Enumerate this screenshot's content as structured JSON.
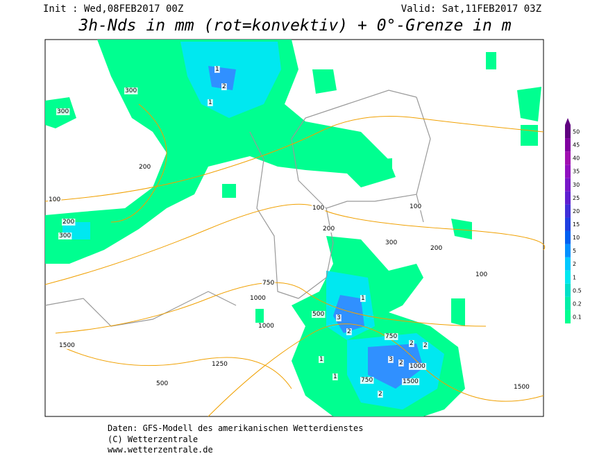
{
  "header": {
    "init": "Init : Wed,08FEB2017 00Z",
    "valid": "Valid: Sat,11FEB2017 03Z",
    "title": "3h-Nds in mm (rot=konvektiv) + 0°-Grenze in m"
  },
  "legend": {
    "labels": [
      0.1,
      0.2,
      0.5,
      1,
      2,
      5,
      10,
      15,
      20,
      25,
      30,
      35,
      40,
      45,
      50
    ],
    "colors": [
      "#00ff90",
      "#00eea8",
      "#00e0c8",
      "#00e8f0",
      "#00c8ff",
      "#0090ff",
      "#0060f0",
      "#2040e0",
      "#4030d8",
      "#6020d0",
      "#7818c8",
      "#9010c0",
      "#a010b0",
      "#8000a0",
      "#600080"
    ]
  },
  "map_labels": [
    "300",
    "300",
    "200",
    "100",
    "200",
    "300",
    "100",
    "200",
    "300",
    "750",
    "1000",
    "500",
    "1000",
    "750",
    "1500",
    "1250",
    "1500",
    "1000",
    "750",
    "500",
    "200",
    "100",
    "1500",
    "100",
    "1",
    "2",
    "3",
    "2",
    "1",
    "2",
    "3",
    "2",
    "1",
    "1",
    "2",
    "2",
    "1"
  ],
  "footer": [
    "Daten: GFS-Modell des amerikanischen Wetterdienstes",
    "(C) Wetterzentrale",
    "www.wetterzentrale.de"
  ]
}
